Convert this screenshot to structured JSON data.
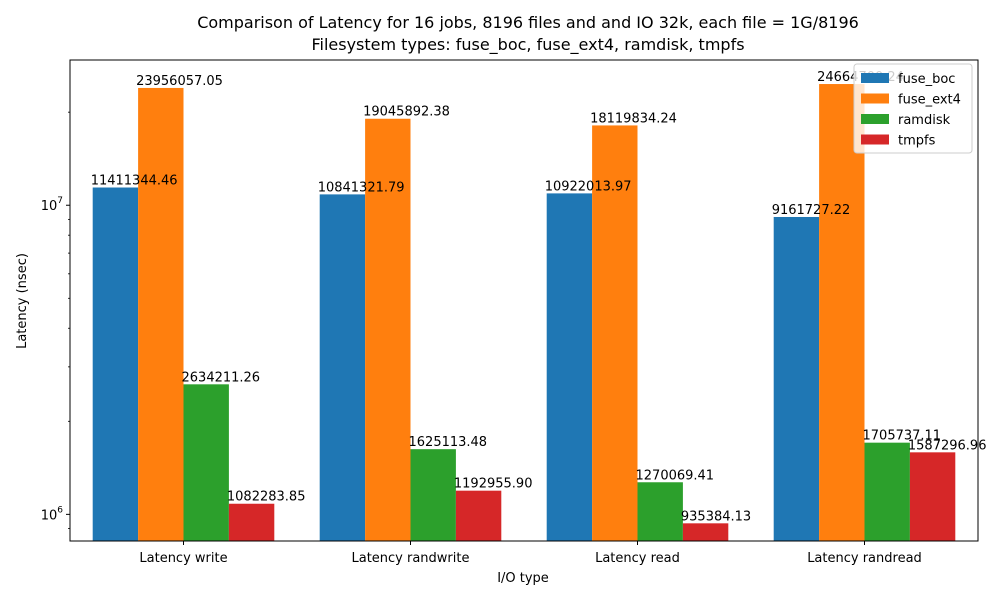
{
  "chart_data": {
    "type": "bar",
    "title": "Comparison of Latency for 16 jobs, 8196 files and  and IO 32k, each file = 1G/8196",
    "subtitle": "Filesystem types: fuse_boc, fuse_ext4, ramdisk, tmpfs",
    "xlabel": "I/O type",
    "ylabel": "Latency (nsec)",
    "yscale": "log",
    "ylim": [
      820000,
      29500000
    ],
    "categories": [
      "Latency write",
      "Latency randwrite",
      "Latency read",
      "Latency randread"
    ],
    "series": [
      {
        "name": "fuse_boc",
        "color": "#1f77b4",
        "values": [
          11411344.46,
          10841321.79,
          10922013.97,
          9161727.22
        ]
      },
      {
        "name": "fuse_ext4",
        "color": "#ff7f0e",
        "values": [
          23956057.05,
          19045892.38,
          18119834.24,
          24664700.24
        ]
      },
      {
        "name": "ramdisk",
        "color": "#2ca02c",
        "values": [
          2634211.26,
          1625113.48,
          1270069.41,
          1705737.11
        ]
      },
      {
        "name": "tmpfs",
        "color": "#d62728",
        "values": [
          1082283.85,
          1192955.9,
          935384.13,
          1587296.96
        ]
      }
    ],
    "data_labels": [
      [
        "11411344.46",
        "10841321.79",
        "10922013.97",
        "9161727.22"
      ],
      [
        "23956057.05",
        "19045892.38",
        "18119834.24",
        "24664700.24"
      ],
      [
        "2634211.26",
        "1625113.48",
        "1270069.41",
        "1705737.11"
      ],
      [
        "1082283.85",
        "1192955.90",
        "935384.13",
        "1587296.96"
      ]
    ],
    "y_ticks": [
      {
        "value": 1000000,
        "base": "10",
        "exp": "6"
      },
      {
        "value": 10000000,
        "base": "10",
        "exp": "7"
      }
    ],
    "legend_position": "top-right",
    "grid": false
  }
}
